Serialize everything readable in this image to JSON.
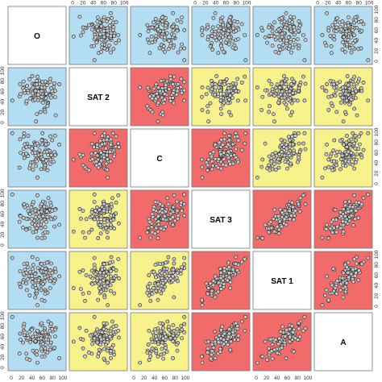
{
  "chart_data": {
    "type": "scatter",
    "layout": "scatterplot-matrix",
    "variables": [
      "O",
      "SAT 2",
      "C",
      "SAT 3",
      "SAT 1",
      "A"
    ],
    "axis_range": [
      0,
      100
    ],
    "axis_ticks": [
      "0",
      "20",
      "40",
      "60",
      "80",
      "100"
    ],
    "colors": {
      "low": "#B3DDF2",
      "medium": "#F7F28C",
      "high": "#F26B6B",
      "diagonal": "#FFFFFF",
      "point_fill": "#C8C8C8",
      "point_stroke": "#222222",
      "frame": "#777777"
    },
    "correlation_class": [
      [
        "diag",
        "low",
        "low",
        "low",
        "low",
        "low"
      ],
      [
        "low",
        "diag",
        "high",
        "medium",
        "medium",
        "medium"
      ],
      [
        "low",
        "high",
        "diag",
        "high",
        "medium",
        "medium"
      ],
      [
        "low",
        "medium",
        "high",
        "diag",
        "high",
        "high"
      ],
      [
        "low",
        "medium",
        "medium",
        "high",
        "diag",
        "high"
      ],
      [
        "low",
        "medium",
        "medium",
        "high",
        "high",
        "diag"
      ]
    ],
    "correlations": [
      [
        1.0,
        0.0,
        0.0,
        0.0,
        0.0,
        0.0
      ],
      [
        0.0,
        1.0,
        0.55,
        0.35,
        0.35,
        0.35
      ],
      [
        0.0,
        0.55,
        1.0,
        0.55,
        0.35,
        0.35
      ],
      [
        0.0,
        0.35,
        0.55,
        1.0,
        0.75,
        0.7
      ],
      [
        0.0,
        0.35,
        0.35,
        0.75,
        1.0,
        0.7
      ],
      [
        0.0,
        0.35,
        0.35,
        0.7,
        0.7,
        1.0
      ]
    ],
    "n_points": 100,
    "grid": false,
    "legend": "none"
  }
}
